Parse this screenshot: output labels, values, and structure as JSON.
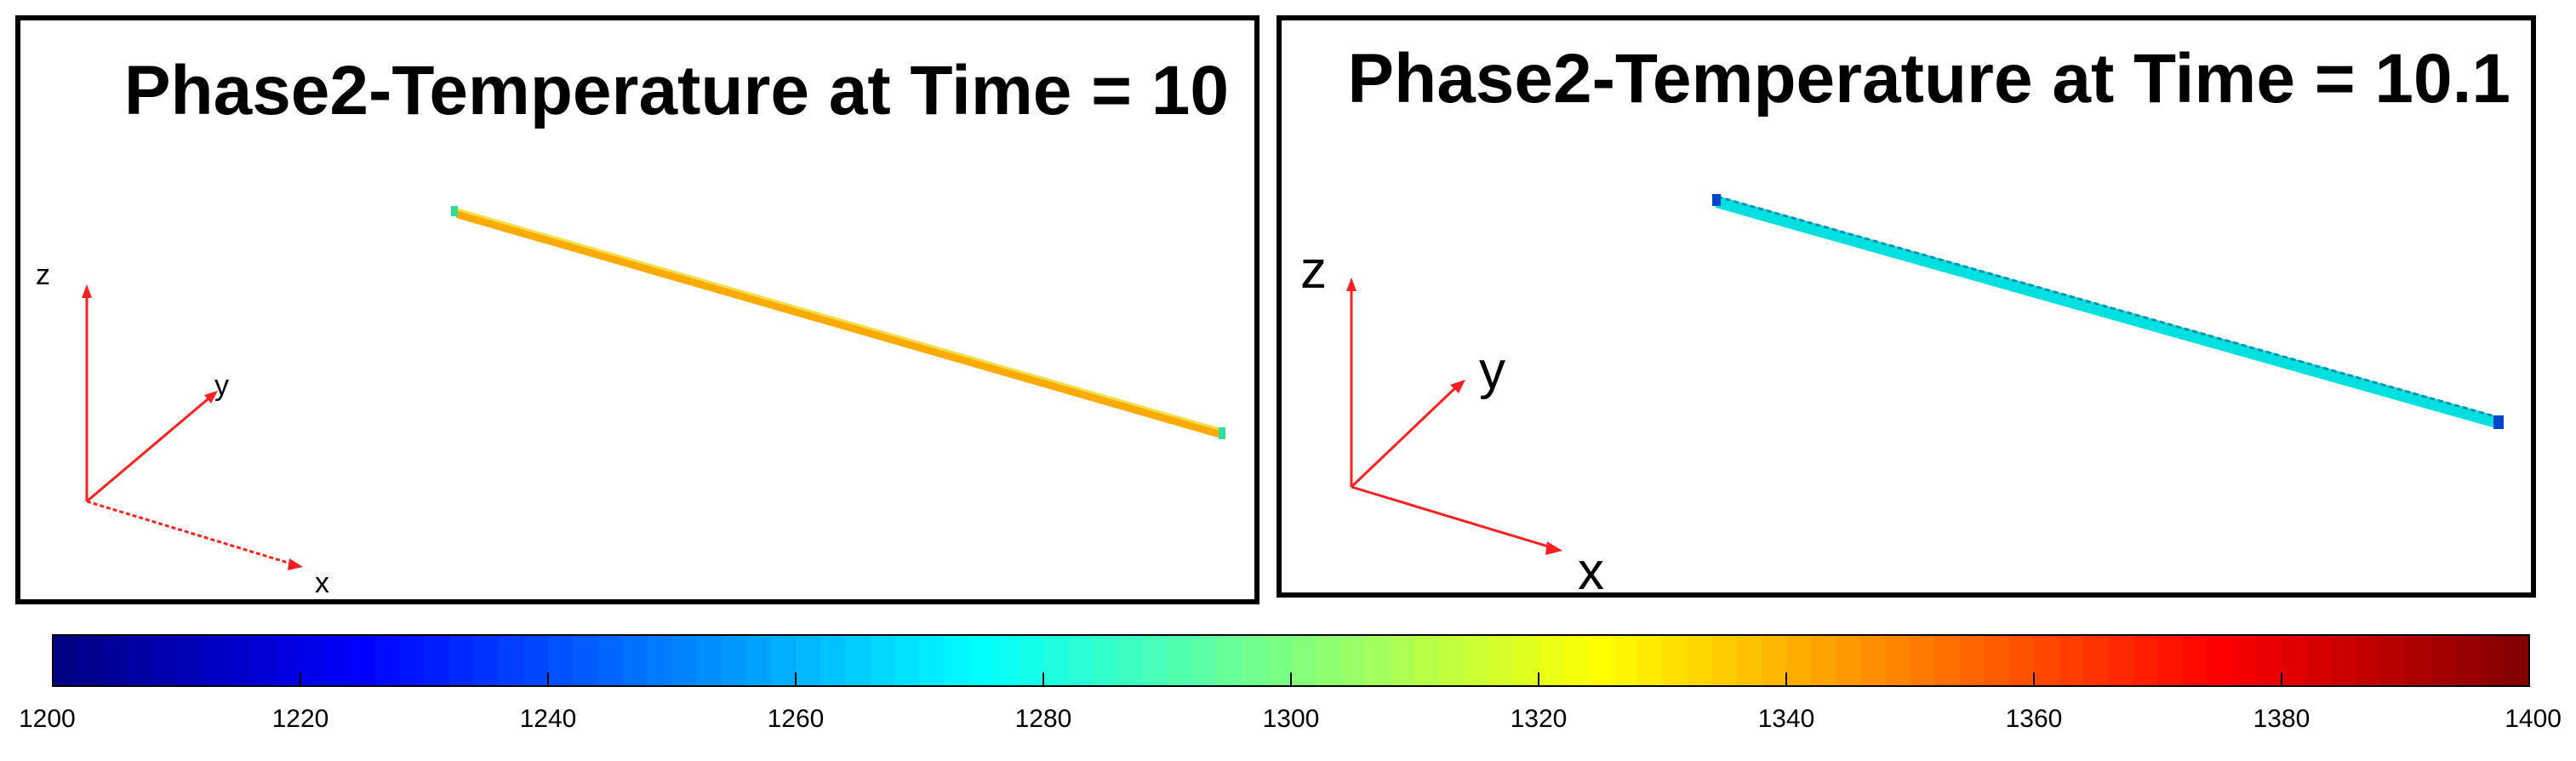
{
  "panels": [
    {
      "title": "Phase2-Temperature at Time = 10",
      "bar_color": "#ffaa00",
      "bar_edge": "#f0e04a",
      "end_color": "#33dd99",
      "axes": {
        "x": "x",
        "y": "y",
        "z": "z"
      }
    },
    {
      "title": "Phase2-Temperature at Time = 10.1",
      "bar_color": "#00e0e0",
      "bar_edge": "#0090b0",
      "end_color": "#0044cc",
      "axes": {
        "x": "x",
        "y": "y",
        "z": "z"
      }
    }
  ],
  "axis_color": "#ff2020",
  "colorbar": {
    "min": 1200,
    "max": 1400,
    "ticks": [
      "1200",
      "1220",
      "1240",
      "1260",
      "1280",
      "1300",
      "1320",
      "1340",
      "1360",
      "1380",
      "1400"
    ],
    "colormap": "jet"
  }
}
